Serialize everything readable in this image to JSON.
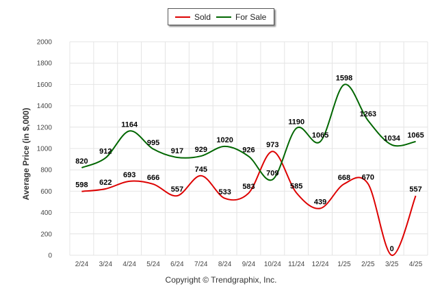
{
  "chart_data": {
    "type": "line",
    "categories": [
      "2/24",
      "3/24",
      "4/24",
      "5/24",
      "6/24",
      "7/24",
      "8/24",
      "9/24",
      "10/24",
      "11/24",
      "12/24",
      "1/25",
      "2/25",
      "3/25",
      "4/25"
    ],
    "series": [
      {
        "name": "Sold",
        "color": "#dd0000",
        "values": [
          598,
          622,
          693,
          666,
          557,
          745,
          533,
          583,
          973,
          585,
          439,
          668,
          670,
          0,
          557
        ]
      },
      {
        "name": "For Sale",
        "color": "#006600",
        "values": [
          820,
          912,
          1164,
          995,
          917,
          929,
          1020,
          926,
          709,
          1190,
          1065,
          1598,
          1263,
          1034,
          1065
        ]
      }
    ],
    "ylabel": "Average Price (in $,000)",
    "ylim": [
      0,
      2000
    ],
    "yticks": [
      0,
      200,
      400,
      600,
      800,
      1000,
      1200,
      1400,
      1600,
      1800,
      2000
    ],
    "grid": true,
    "legend_position": "top-center"
  },
  "footer": "Copyright © Trendgraphix, Inc."
}
